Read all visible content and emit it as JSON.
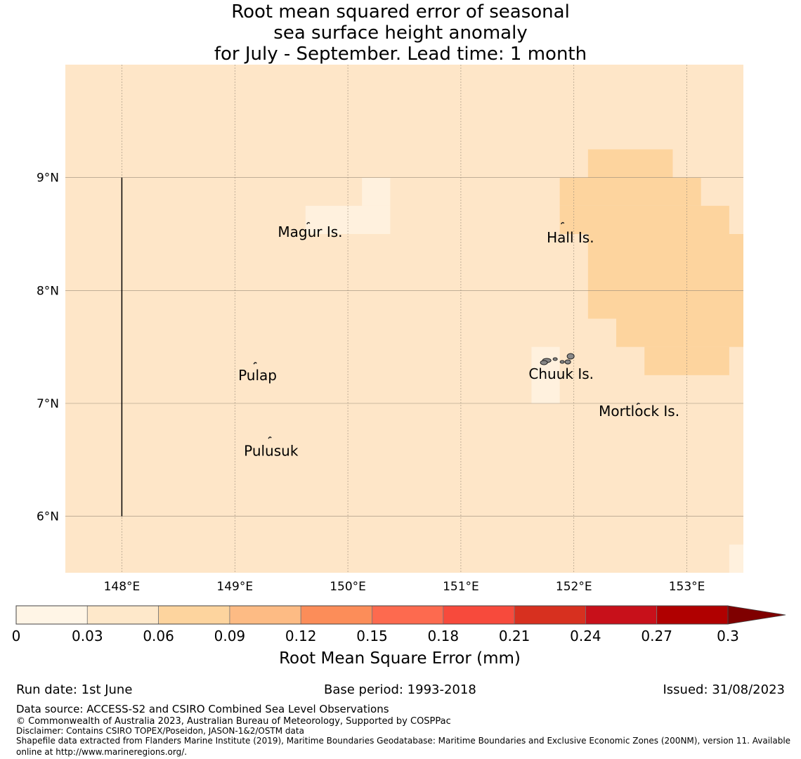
{
  "title": {
    "line1": "Root mean squared error of seasonal",
    "line2": "sea surface height anomaly",
    "line3": "for July - September. Lead time: 1 month"
  },
  "map": {
    "lon_range": [
      147.5,
      153.5
    ],
    "lat_range": [
      5.5,
      10.0
    ],
    "lon_ticks": [
      148,
      149,
      150,
      151,
      152,
      153
    ],
    "lon_tick_labels": [
      "148°E",
      "149°E",
      "150°E",
      "151°E",
      "152°E",
      "153°E"
    ],
    "lat_ticks": [
      9,
      8,
      7,
      6
    ],
    "lat_tick_labels": [
      "9°N",
      "8°N",
      "7°N",
      "6°N"
    ],
    "grid": true,
    "background_color": "#fee6c8",
    "lighter_color": "#fff1de",
    "darker_color": "#fdd49e",
    "lighter_cells": [
      {
        "lon": [
          150.125,
          150.375
        ],
        "lat": [
          8.75,
          9.0
        ]
      },
      {
        "lon": [
          149.625,
          150.375
        ],
        "lat": [
          8.5,
          8.75
        ]
      },
      {
        "lon": [
          151.625,
          151.875
        ],
        "lat": [
          6.999,
          7.5
        ]
      },
      {
        "lon": [
          153.375,
          153.5
        ],
        "lat": [
          5.5,
          5.75
        ]
      }
    ],
    "darker_cells": [
      {
        "lon": [
          152.125,
          152.875
        ],
        "lat": [
          9.0,
          9.25
        ]
      },
      {
        "lon": [
          151.875,
          153.125
        ],
        "lat": [
          8.75,
          9.0
        ]
      },
      {
        "lon": [
          151.875,
          153.375
        ],
        "lat": [
          8.5,
          8.75
        ]
      },
      {
        "lon": [
          152.125,
          153.5
        ],
        "lat": [
          7.75,
          8.5
        ]
      },
      {
        "lon": [
          152.375,
          153.5
        ],
        "lat": [
          7.5,
          7.75
        ]
      },
      {
        "lon": [
          152.625,
          153.375
        ],
        "lat": [
          7.25,
          7.5
        ]
      }
    ],
    "boundary_line": {
      "lon": 148.0,
      "lat": [
        6.0,
        9.0
      ]
    },
    "islands": [
      {
        "name": "Magur Is.",
        "label_lon": 149.38,
        "label_lat": 8.52,
        "island_lon": 149.65,
        "island_lat": 8.6
      },
      {
        "name": "Hall Is.",
        "label_lon": 151.76,
        "label_lat": 8.47,
        "island_lon": 151.9,
        "island_lat": 8.6
      },
      {
        "name": "Pulap",
        "label_lon": 149.03,
        "label_lat": 7.25,
        "island_lon": 149.18,
        "island_lat": 7.36
      },
      {
        "name": "Chuuk Is.",
        "label_lon": 151.6,
        "label_lat": 7.26,
        "island_lon": 151.76,
        "island_lat": 7.38
      },
      {
        "name": "Mortlock Is.",
        "label_lon": 152.22,
        "label_lat": 6.93,
        "island_lon": 152.57,
        "island_lat": 7.0
      },
      {
        "name": "Pulusuk",
        "label_lon": 149.08,
        "label_lat": 6.58,
        "island_lon": 149.31,
        "island_lat": 6.7
      }
    ]
  },
  "colorbar": {
    "label": "Root Mean Square Error (mm)",
    "ticks": [
      "0",
      "0.03",
      "0.06",
      "0.09",
      "0.12",
      "0.15",
      "0.18",
      "0.21",
      "0.24",
      "0.27",
      "0.3"
    ],
    "colors": [
      "#fff5e6",
      "#fee8ca",
      "#fdd49e",
      "#fdbb84",
      "#fc8d59",
      "#fd6a4f",
      "#f74a3c",
      "#d7301f",
      "#c8101a",
      "#b00000"
    ],
    "extend_color": "#7f0000"
  },
  "footer": {
    "run_date": "Run date: 1st June",
    "base_period": "Base period: 1993-2018",
    "issued": "Issued: 31/08/2023",
    "data_source": "Data source: ACCESS-S2 and CSIRO Combined Sea Level Observations",
    "copyright": "© Commonwealth of Australia 2023, Australian Bureau of Meteorology, Supported by COSPPac",
    "disclaimer": "Disclaimer: Contains CSIRO TOPEX/Poseidon, JASON-1&2/OSTM data",
    "shapefile": "Shapefile data extracted from Flanders Marine Institute (2019), Maritime Boundaries Geodatabase: Maritime Boundaries and Exclusive Economic Zones (200NM), version 11. Available online at http://www.marineregions.org/."
  }
}
